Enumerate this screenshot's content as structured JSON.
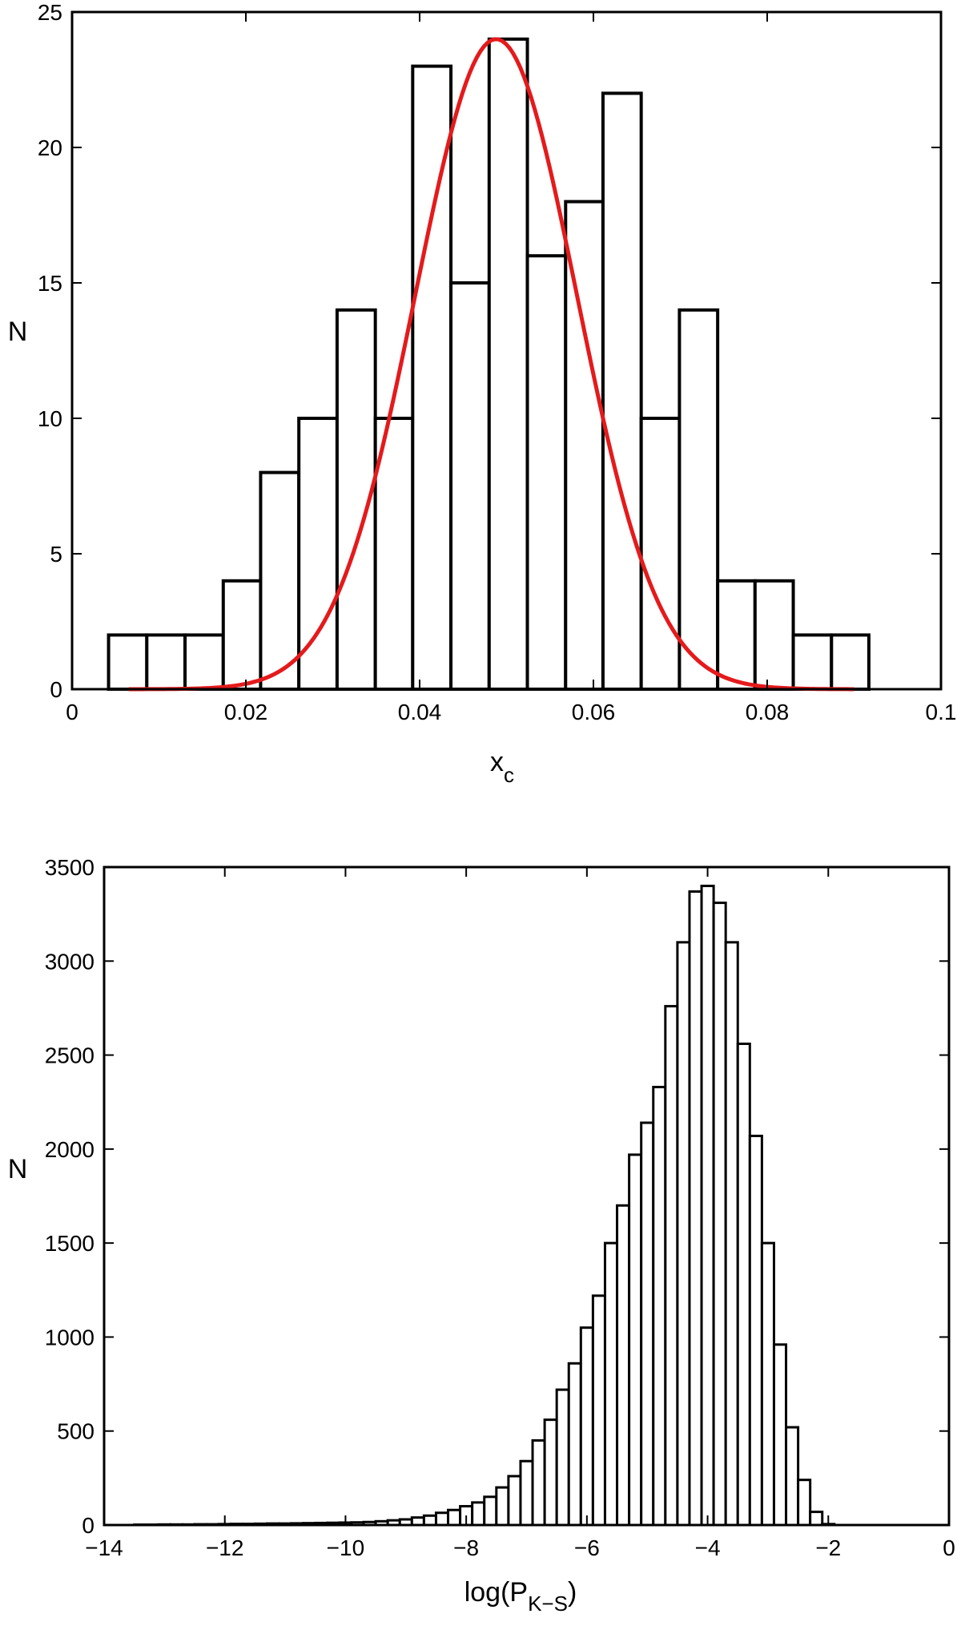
{
  "chart_data": [
    {
      "type": "bar",
      "xlabel": "x",
      "xlabel_subscript": "c",
      "ylabel": "N",
      "xlim": [
        0,
        0.1
      ],
      "ylim": [
        0,
        25
      ],
      "xticks": [
        "0",
        "0.02",
        "0.04",
        "0.06",
        "0.08",
        "0.1"
      ],
      "yticks": [
        "0",
        "5",
        "10",
        "15",
        "20",
        "25"
      ],
      "bin_edges": [
        0.0042,
        0.0086,
        0.013,
        0.0174,
        0.0217,
        0.0261,
        0.0305,
        0.0349,
        0.0392,
        0.0436,
        0.048,
        0.0524,
        0.0568,
        0.0611,
        0.0655,
        0.0699,
        0.0743,
        0.0786,
        0.083,
        0.0874,
        0.0917
      ],
      "values": [
        2,
        2,
        2,
        4,
        8,
        10,
        14,
        10,
        23,
        15,
        24,
        16,
        18,
        22,
        10,
        14,
        4,
        4,
        2,
        2
      ],
      "fit_curve": {
        "type": "gaussian",
        "color": "#e41a1c",
        "peak": 24,
        "mean": 0.0488,
        "sigma": 0.0093,
        "x_range": [
          0.0065,
          0.09
        ]
      },
      "grid": false,
      "bar_fill": "#ffffff",
      "bar_stroke": "#000000"
    },
    {
      "type": "bar",
      "xlabel": "log(P",
      "xlabel_subscript": "K−S",
      "xlabel_suffix": ")",
      "ylabel": "N",
      "xlim": [
        -14,
        0
      ],
      "ylim": [
        0,
        3500
      ],
      "xticks": [
        "−14",
        "−12",
        "−10",
        "−8",
        "−6",
        "−4",
        "−2",
        "0"
      ],
      "yticks": [
        "0",
        "500",
        "1000",
        "1500",
        "2000",
        "2500",
        "3000",
        "3500"
      ],
      "bin_start": -13.5,
      "bin_width": 0.2,
      "values": [
        2,
        2,
        3,
        3,
        3,
        4,
        4,
        5,
        6,
        6,
        7,
        8,
        8,
        9,
        10,
        11,
        12,
        13,
        14,
        16,
        20,
        25,
        30,
        40,
        50,
        65,
        80,
        100,
        120,
        150,
        200,
        260,
        340,
        450,
        560,
        720,
        860,
        1050,
        1220,
        1500,
        1700,
        1970,
        2140,
        2330,
        2760,
        3100,
        3370,
        3400,
        3310,
        3100,
        2560,
        2070,
        1500,
        960,
        520,
        240,
        70,
        5
      ],
      "grid": false,
      "bar_fill": "#ffffff",
      "bar_stroke": "#000000"
    }
  ]
}
